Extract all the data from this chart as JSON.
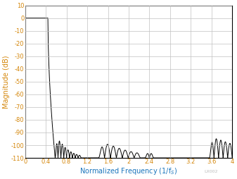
{
  "ylabel": "Magnitude (dB)",
  "xlim": [
    0,
    4
  ],
  "ylim": [
    -110,
    10
  ],
  "xticks": [
    0,
    0.4,
    0.8,
    1.2,
    1.6,
    2.0,
    2.4,
    2.8,
    3.2,
    3.6,
    4.0
  ],
  "yticks": [
    10,
    0,
    -10,
    -20,
    -30,
    -40,
    -50,
    -60,
    -70,
    -80,
    -90,
    -100,
    -110
  ],
  "xtick_labels": [
    "0",
    "0.4",
    "0.8",
    "1.2",
    "1.6",
    "2",
    "2.4",
    "2.8",
    "3.2",
    "3.6",
    "4"
  ],
  "ytick_labels": [
    "10",
    "0",
    "-10",
    "-20",
    "-30",
    "-40",
    "-50",
    "-60",
    "-70",
    "-80",
    "-90",
    "-100",
    "-110"
  ],
  "line_color": "#000000",
  "grid_color": "#c0c0c0",
  "ytick_color": "#d4860a",
  "xtick_color": "#d4860a",
  "xlabel_color": "#1a75bc",
  "ylabel_color": "#d4860a",
  "background_color": "#ffffff",
  "watermark": "LX002",
  "figsize": [
    3.37,
    2.54
  ],
  "dpi": 100,
  "passband_end": 0.44,
  "transition_end": 0.58,
  "region1_start": 0.58,
  "region1_end": 1.08,
  "region1_peak": -88,
  "region1_lobes": 9,
  "region2_start": 1.42,
  "region2_end": 2.22,
  "region2_peak": -94,
  "region2_lobes": 7,
  "region3_start": 2.32,
  "region3_end": 2.48,
  "region3_peak": -106,
  "region3_lobes": 2,
  "region4_start": 3.56,
  "region4_end": 4.0,
  "region4_peak": -92,
  "region4_lobes": 5
}
